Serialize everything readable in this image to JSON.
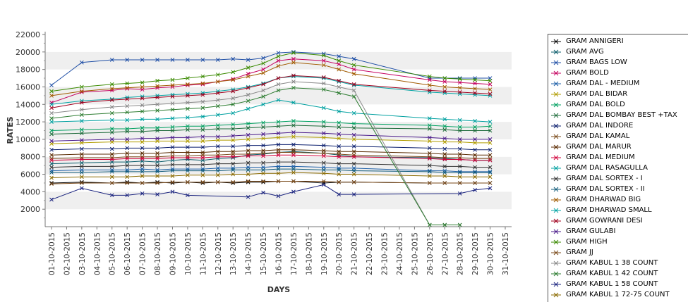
{
  "chart_data": {
    "type": "line",
    "xlabel": "DAYS",
    "ylabel": "RATES",
    "ylim": [
      0,
      22000
    ],
    "y_ticks": [
      2000,
      4000,
      6000,
      8000,
      10000,
      12000,
      14000,
      16000,
      18000,
      20000,
      22000
    ],
    "categories": [
      "01-10-2015",
      "02-10-2015",
      "03-10-2015",
      "04-10-2015",
      "05-10-2015",
      "06-10-2015",
      "07-10-2015",
      "08-10-2015",
      "09-10-2015",
      "10-10-2015",
      "11-10-2015",
      "12-10-2015",
      "13-10-2015",
      "14-10-2015",
      "15-10-2015",
      "16-10-2015",
      "17-10-2015",
      "18-10-2015",
      "19-10-2015",
      "20-10-2015",
      "21-10-2015",
      "22-10-2015",
      "23-10-2015",
      "24-10-2015",
      "25-10-2015",
      "26-10-2015",
      "27-10-2015",
      "28-10-2015",
      "29-10-2015",
      "30-10-2015",
      "31-10-2015"
    ],
    "grid": true,
    "legend_placement": "right",
    "series": [
      {
        "name": "GRAM ANNIGERI",
        "color": "#000000",
        "values": [
          5000,
          null,
          5100,
          null,
          5000,
          5100,
          5000,
          5100,
          5000,
          5100,
          5000,
          5100,
          5000,
          5100,
          5100,
          5200,
          5200,
          null,
          5000,
          5100,
          5100,
          null,
          null,
          null,
          null,
          5000,
          5000,
          5000,
          5000,
          5000,
          null
        ]
      },
      {
        "name": "GRAM AVG",
        "color": "#0b5d6b",
        "values": [
          7200,
          null,
          7300,
          null,
          7400,
          7400,
          7500,
          7400,
          7600,
          7700,
          7600,
          7800,
          7900,
          8200,
          8300,
          8500,
          8600,
          null,
          8400,
          8200,
          8000,
          null,
          null,
          null,
          null,
          7900,
          7800,
          7700,
          7600,
          7600,
          null
        ]
      },
      {
        "name": "GRAM BAGS LOW",
        "color": "#1f4fa6",
        "values": [
          16200,
          null,
          18800,
          null,
          19100,
          19100,
          19100,
          19100,
          19100,
          19100,
          19100,
          19100,
          19200,
          19100,
          19300,
          19900,
          20000,
          null,
          19800,
          19500,
          19200,
          null,
          null,
          null,
          null,
          17000,
          17000,
          17000,
          17000,
          17000,
          null
        ]
      },
      {
        "name": "GRAM BOLD",
        "color": "#c4005f",
        "values": [
          14200,
          null,
          15400,
          null,
          15600,
          15800,
          15700,
          15900,
          16000,
          16200,
          16300,
          16600,
          16900,
          17500,
          18000,
          19000,
          19200,
          null,
          19000,
          18600,
          18000,
          null,
          null,
          null,
          null,
          16800,
          16600,
          16500,
          16400,
          16300,
          null
        ]
      },
      {
        "name": "GRAM DAL - MEDIUM",
        "color": "#1c5fa8",
        "values": [
          6400,
          null,
          6500,
          null,
          6500,
          6500,
          6600,
          6500,
          6600,
          6600,
          6600,
          6700,
          6700,
          6800,
          6800,
          6900,
          6900,
          null,
          6800,
          6700,
          6700,
          null,
          null,
          null,
          null,
          6400,
          6400,
          6300,
          6300,
          6300,
          null
        ]
      },
      {
        "name": "GRAM DAL BIDAR",
        "color": "#b09c00",
        "values": [
          9500,
          null,
          9600,
          null,
          9700,
          9700,
          9700,
          9800,
          9800,
          9800,
          9800,
          9900,
          9900,
          10000,
          10100,
          10200,
          10300,
          null,
          10200,
          10100,
          10000,
          null,
          null,
          null,
          null,
          9800,
          9700,
          9700,
          9600,
          9600,
          null
        ]
      },
      {
        "name": "GRAM DAL BOLD",
        "color": "#00a060",
        "values": [
          11000,
          null,
          11100,
          null,
          11200,
          11200,
          11300,
          11300,
          11400,
          11500,
          11500,
          11600,
          11700,
          11800,
          11900,
          12000,
          12100,
          null,
          12000,
          11900,
          11800,
          null,
          null,
          null,
          null,
          11600,
          11500,
          11400,
          11400,
          11500,
          null
        ]
      },
      {
        "name": "GRAM DAL BOMBAY BEST +TAX",
        "color": "#1d6b3a",
        "values": [
          10600,
          null,
          10700,
          null,
          10800,
          10900,
          10900,
          11000,
          11000,
          11100,
          11100,
          11200,
          11200,
          11300,
          11400,
          11500,
          11600,
          null,
          11500,
          11400,
          11300,
          null,
          null,
          null,
          null,
          11200,
          11100,
          11000,
          11000,
          11000,
          null
        ]
      },
      {
        "name": "GRAM DAL INDORE",
        "color": "#0b1f6e",
        "values": [
          8800,
          null,
          8900,
          null,
          8900,
          9000,
          9000,
          9000,
          9100,
          9100,
          9100,
          9200,
          9200,
          9300,
          9300,
          9400,
          9400,
          null,
          9300,
          9200,
          9200,
          null,
          null,
          null,
          null,
          9000,
          8900,
          8900,
          8800,
          8800,
          null
        ]
      },
      {
        "name": "GRAM DAL KAMAL",
        "color": "#7a4a1a",
        "values": [
          7800,
          null,
          7900,
          null,
          7900,
          8000,
          8000,
          8000,
          8100,
          8100,
          8200,
          8200,
          8300,
          8300,
          8400,
          8500,
          8500,
          null,
          8400,
          8300,
          8200,
          null,
          null,
          null,
          null,
          8000,
          7900,
          7900,
          7800,
          7800,
          null
        ]
      },
      {
        "name": "GRAM DAL MARUR",
        "color": "#5a2a00",
        "values": [
          8200,
          null,
          8300,
          null,
          8300,
          8400,
          8400,
          8400,
          8500,
          8500,
          8500,
          8600,
          8600,
          8700,
          8700,
          8800,
          8800,
          null,
          8700,
          8600,
          8600,
          null,
          null,
          null,
          null,
          8400,
          8300,
          8300,
          8200,
          8200,
          null
        ]
      },
      {
        "name": "GRAM DAL MEDIUM",
        "color": "#d0003a",
        "values": [
          7600,
          null,
          7700,
          null,
          7700,
          7800,
          7800,
          7800,
          7900,
          7900,
          7900,
          8000,
          8000,
          8100,
          8100,
          8200,
          8200,
          null,
          8100,
          8000,
          8000,
          null,
          null,
          null,
          null,
          7800,
          7700,
          7700,
          7600,
          7600,
          null
        ]
      },
      {
        "name": "GRAM DAL RASAGULLA",
        "color": "#00a0a0",
        "values": [
          12000,
          null,
          12100,
          null,
          12200,
          12200,
          12300,
          12300,
          12400,
          12500,
          12600,
          12800,
          13000,
          13500,
          14000,
          14500,
          14200,
          null,
          13600,
          13200,
          13000,
          null,
          null,
          null,
          null,
          12400,
          12300,
          12200,
          12100,
          12000,
          null
        ]
      },
      {
        "name": "GRAM DAL SORTEX - I",
        "color": "#333333",
        "values": [
          6800,
          null,
          6900,
          null,
          6900,
          7000,
          7000,
          7000,
          7100,
          7100,
          7100,
          7200,
          7200,
          7300,
          7300,
          7400,
          7400,
          null,
          7300,
          7200,
          7200,
          null,
          null,
          null,
          null,
          7000,
          6900,
          6900,
          6800,
          6800,
          null
        ]
      },
      {
        "name": "GRAM DAL SORTEX - II",
        "color": "#0f5a7a",
        "values": [
          6200,
          null,
          6200,
          null,
          6300,
          6300,
          6300,
          6300,
          6400,
          6400,
          6400,
          6400,
          6500,
          6500,
          6500,
          6600,
          6600,
          null,
          6500,
          6500,
          6400,
          null,
          null,
          null,
          null,
          6300,
          6200,
          6200,
          6200,
          6200,
          null
        ]
      },
      {
        "name": "GRAM DHARWAD BIG",
        "color": "#a05a00",
        "values": [
          15000,
          null,
          15500,
          null,
          15800,
          15900,
          16000,
          16100,
          16200,
          16300,
          16400,
          16600,
          16800,
          17200,
          17600,
          18400,
          18800,
          null,
          18500,
          18000,
          17500,
          null,
          null,
          null,
          null,
          16200,
          16000,
          15900,
          15800,
          15700,
          null
        ]
      },
      {
        "name": "GRAM DHARWAD SMALL",
        "color": "#00a3a3",
        "values": [
          14000,
          null,
          14400,
          null,
          14600,
          14800,
          14900,
          15000,
          15100,
          15200,
          15300,
          15500,
          15700,
          16000,
          16400,
          17000,
          17200,
          null,
          17000,
          16600,
          16200,
          null,
          null,
          null,
          null,
          15400,
          15300,
          15200,
          15100,
          15000,
          null
        ]
      },
      {
        "name": "GRAM GOWRANI DESI",
        "color": "#a0001e",
        "values": [
          13600,
          null,
          14200,
          null,
          14500,
          14600,
          14700,
          14800,
          14900,
          15000,
          15100,
          15300,
          15500,
          15900,
          16300,
          17000,
          17300,
          null,
          17100,
          16700,
          16300,
          null,
          null,
          null,
          null,
          15600,
          15500,
          15400,
          15300,
          15200,
          null
        ]
      },
      {
        "name": "GRAM GULABI",
        "color": "#4a1a8a",
        "values": [
          9800,
          null,
          9900,
          null,
          10000,
          10000,
          10100,
          10100,
          10200,
          10200,
          10300,
          10300,
          10400,
          10500,
          10600,
          10700,
          10800,
          null,
          10700,
          10600,
          10500,
          null,
          null,
          null,
          null,
          10200,
          10100,
          10000,
          10000,
          10000,
          null
        ]
      },
      {
        "name": "GRAM HIGH",
        "color": "#3a8a00",
        "values": [
          15500,
          null,
          16000,
          null,
          16300,
          16400,
          16500,
          16700,
          16800,
          17000,
          17200,
          17400,
          17700,
          18200,
          18700,
          19500,
          19900,
          null,
          19600,
          19000,
          18500,
          null,
          null,
          null,
          null,
          17200,
          17000,
          16900,
          16800,
          16700,
          null
        ]
      },
      {
        "name": "GRAM JJ",
        "color": "#7a4a1a",
        "values": [
          4900,
          null,
          5000,
          null,
          5000,
          5000,
          5000,
          5000,
          5100,
          5100,
          5100,
          5100,
          5100,
          5200,
          5200,
          5200,
          5200,
          null,
          5200,
          5100,
          5100,
          null,
          null,
          null,
          null,
          5000,
          5000,
          5000,
          5000,
          5000,
          null
        ]
      },
      {
        "name": "GRAM KABUL 1 38 COUNT",
        "color": "#888888",
        "values": [
          13000,
          null,
          13400,
          null,
          13700,
          13800,
          13900,
          14000,
          14100,
          14200,
          14300,
          14500,
          14700,
          15100,
          15600,
          16300,
          16600,
          null,
          16400,
          16000,
          15600,
          null,
          null,
          null,
          null,
          200,
          200,
          200,
          null,
          null,
          null
        ]
      },
      {
        "name": "GRAM KABUL 1 42 COUNT",
        "color": "#2e7d32",
        "values": [
          12400,
          null,
          12800,
          null,
          13000,
          13100,
          13200,
          13300,
          13400,
          13500,
          13600,
          13800,
          14000,
          14400,
          14900,
          15600,
          15900,
          null,
          15700,
          15300,
          14900,
          null,
          null,
          null,
          null,
          200,
          200,
          200,
          null,
          null,
          null
        ]
      },
      {
        "name": "GRAM KABUL 1 58 COUNT",
        "color": "#1a237e",
        "values": [
          3100,
          null,
          4400,
          null,
          3600,
          3600,
          3800,
          3700,
          4000,
          3600,
          null,
          null,
          null,
          3400,
          3900,
          3500,
          4000,
          null,
          4800,
          3700,
          3700,
          null,
          null,
          null,
          null,
          null,
          null,
          3800,
          4200,
          4400,
          null
        ]
      },
      {
        "name": "GRAM KABUL 1 72-75 COUNT",
        "color": "#8a6a00",
        "values": [
          5600,
          null,
          5700,
          null,
          5700,
          5700,
          5800,
          5800,
          5800,
          5900,
          5900,
          5900,
          6000,
          6000,
          6100,
          6100,
          6200,
          null,
          6100,
          6000,
          6000,
          null,
          null,
          null,
          null,
          5800,
          5800,
          5700,
          5700,
          5700,
          null
        ]
      }
    ]
  }
}
